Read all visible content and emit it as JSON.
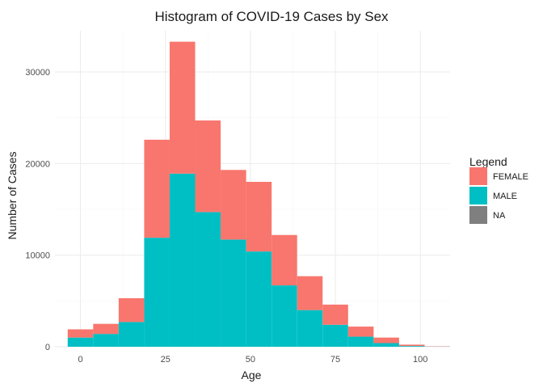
{
  "chart_data": {
    "type": "bar",
    "stacked": true,
    "title": "Histogram of COVID-19 Cases by Sex",
    "xlabel": "Age",
    "ylabel": "Number of Cases",
    "bin_width": 7.5,
    "bin_centers": [
      0,
      7.5,
      15,
      22.5,
      30,
      37.5,
      45,
      52.5,
      60,
      67.5,
      75,
      82.5,
      90,
      97.5,
      105
    ],
    "series": [
      {
        "name": "MALE",
        "color": "#00BFC4",
        "values": [
          1000,
          1400,
          2700,
          11900,
          18900,
          14700,
          11700,
          10400,
          6700,
          4000,
          2400,
          1100,
          400,
          80,
          20
        ]
      },
      {
        "name": "FEMALE",
        "color": "#F8766D",
        "values": [
          900,
          1100,
          2600,
          10700,
          14400,
          10000,
          7600,
          7600,
          5500,
          3700,
          2200,
          1100,
          600,
          150,
          30
        ]
      },
      {
        "name": "NA",
        "color": "#7F7F7F",
        "values": [
          0,
          0,
          0,
          0,
          0,
          0,
          0,
          0,
          0,
          0,
          0,
          0,
          0,
          0,
          0
        ]
      }
    ],
    "xlim": [
      -7.5,
      108.75
    ],
    "ylim": [
      0,
      34500
    ],
    "xticks": [
      0,
      25,
      50,
      75,
      100
    ],
    "yticks": [
      0,
      10000,
      20000,
      30000
    ],
    "grid": true,
    "legend": {
      "title": "Legend",
      "placement": "right",
      "entries": [
        {
          "label": "FEMALE",
          "color": "#F8766D"
        },
        {
          "label": "MALE",
          "color": "#00BFC4"
        },
        {
          "label": "NA",
          "color": "#7F7F7F"
        }
      ]
    }
  }
}
